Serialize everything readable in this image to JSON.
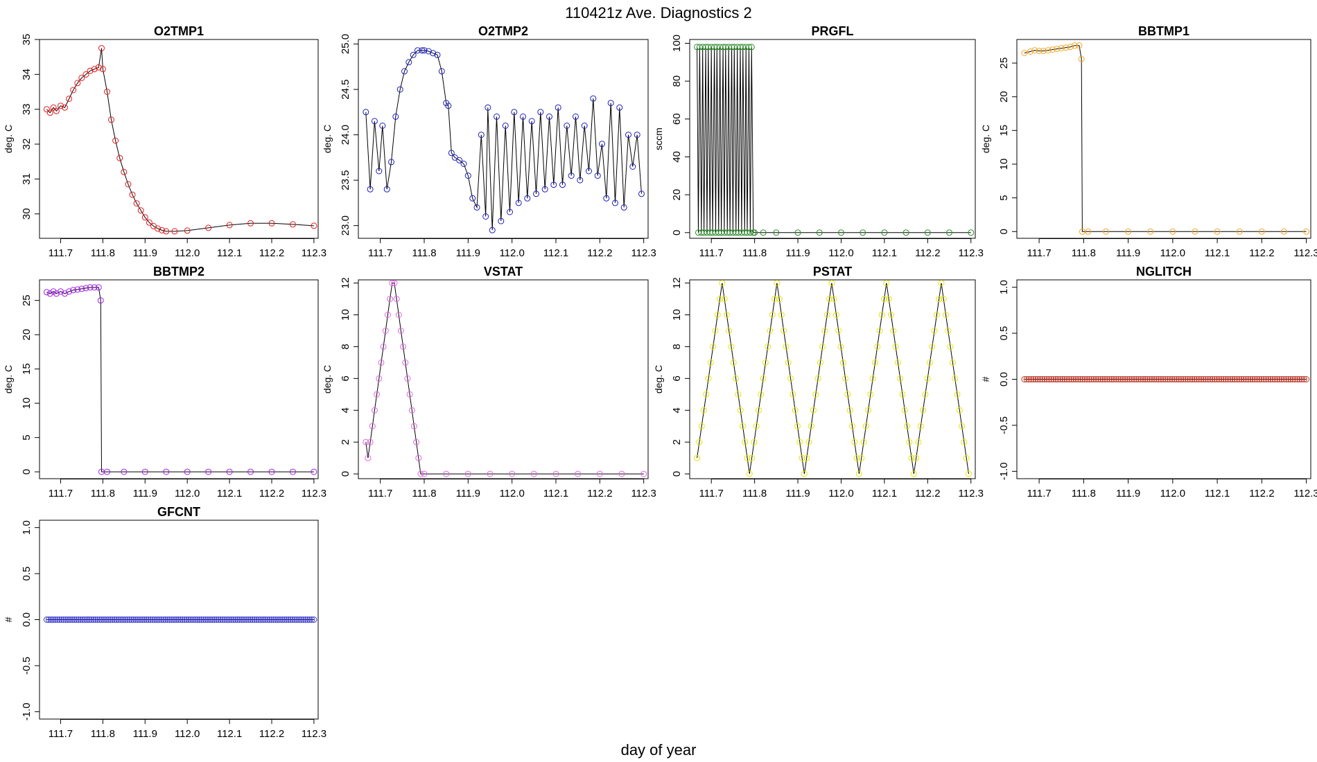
{
  "figure": {
    "title": "110421z   Ave. Diagnostics 2",
    "xlabel": "day of year"
  },
  "chart_data": [
    {
      "id": "O2TMP1",
      "type": "line",
      "title": "O2TMP1",
      "ylabel": "deg. C",
      "xlim": [
        111.65,
        112.31
      ],
      "ylim": [
        29.3,
        35.0
      ],
      "xticks": [
        "111.7",
        "111.8",
        "111.9",
        "112.0",
        "112.1",
        "112.2",
        "112.3"
      ],
      "yticks": [
        "30",
        "31",
        "32",
        "33",
        "34",
        "35"
      ],
      "marker_color": "#e41a1c",
      "series": [
        {
          "x": [
            111.667,
            111.675,
            111.683,
            111.69,
            111.7,
            111.71,
            111.72,
            111.73,
            111.74,
            111.75,
            111.76,
            111.77,
            111.78,
            111.79,
            111.797,
            111.8,
            111.81,
            111.82,
            111.83,
            111.84,
            111.85,
            111.86,
            111.87,
            111.88,
            111.89,
            111.9,
            111.91,
            111.92,
            111.93,
            111.94,
            111.95,
            111.97,
            112.0,
            112.05,
            112.1,
            112.15,
            112.2,
            112.25,
            112.3
          ],
          "y": [
            33.0,
            32.9,
            33.05,
            32.95,
            33.1,
            33.05,
            33.3,
            33.55,
            33.75,
            33.9,
            34.0,
            34.1,
            34.15,
            34.2,
            34.75,
            34.15,
            33.5,
            32.7,
            32.1,
            31.6,
            31.2,
            30.85,
            30.55,
            30.3,
            30.1,
            29.9,
            29.75,
            29.65,
            29.58,
            29.53,
            29.5,
            29.5,
            29.52,
            29.6,
            29.68,
            29.73,
            29.73,
            29.7,
            29.66
          ]
        }
      ]
    },
    {
      "id": "O2TMP2",
      "type": "line",
      "title": "O2TMP2",
      "ylabel": "deg. C",
      "xlim": [
        111.65,
        112.31
      ],
      "ylim": [
        22.86,
        25.05
      ],
      "xticks": [
        "111.7",
        "111.8",
        "111.9",
        "112.0",
        "112.1",
        "112.2",
        "112.3"
      ],
      "yticks": [
        "23.0",
        "23.5",
        "24.0",
        "24.5",
        "25.0"
      ],
      "marker_color": "#1f1fbf",
      "series": [
        {
          "x": [
            111.667,
            111.677,
            111.687,
            111.697,
            111.705,
            111.715,
            111.725,
            111.735,
            111.745,
            111.755,
            111.765,
            111.775,
            111.785,
            111.795,
            111.8,
            111.81,
            111.82,
            111.83,
            111.84,
            111.85,
            111.855,
            111.862,
            111.87,
            111.88,
            111.89,
            111.9,
            111.91,
            111.92,
            111.93,
            111.94,
            111.945,
            111.955,
            111.965,
            111.975,
            111.985,
            111.995,
            112.005,
            112.015,
            112.025,
            112.035,
            112.045,
            112.055,
            112.065,
            112.075,
            112.085,
            112.095,
            112.105,
            112.115,
            112.125,
            112.135,
            112.145,
            112.155,
            112.165,
            112.175,
            112.185,
            112.195,
            112.205,
            112.215,
            112.225,
            112.235,
            112.245,
            112.255,
            112.265,
            112.275,
            112.285,
            112.295
          ],
          "y": [
            24.25,
            23.4,
            24.15,
            23.6,
            24.1,
            23.4,
            23.7,
            24.2,
            24.5,
            24.7,
            24.8,
            24.88,
            24.93,
            24.93,
            24.93,
            24.92,
            24.9,
            24.88,
            24.7,
            24.35,
            24.32,
            23.8,
            23.75,
            23.72,
            23.68,
            23.55,
            23.3,
            23.2,
            24.0,
            23.1,
            24.3,
            22.95,
            24.2,
            23.05,
            24.1,
            23.15,
            24.25,
            23.25,
            24.2,
            23.3,
            24.15,
            23.35,
            24.25,
            23.4,
            24.2,
            23.45,
            24.3,
            23.45,
            24.1,
            23.55,
            24.2,
            23.5,
            24.1,
            23.6,
            24.4,
            23.55,
            23.9,
            23.3,
            24.35,
            23.25,
            24.3,
            23.2,
            24.0,
            23.65,
            24.0,
            23.35
          ]
        }
      ]
    },
    {
      "id": "PRGFL",
      "type": "line",
      "title": "PRGFL",
      "ylabel": "sccm",
      "xlim": [
        111.65,
        112.31
      ],
      "ylim": [
        -3,
        102
      ],
      "xticks": [
        "111.7",
        "111.8",
        "111.9",
        "112.0",
        "112.1",
        "112.2",
        "112.3"
      ],
      "yticks": [
        "0",
        "20",
        "40",
        "60",
        "80",
        "100"
      ],
      "marker_color": "#2e8b2e",
      "series": [
        {
          "x": [
            111.667,
            111.67,
            111.673,
            111.677,
            111.68,
            111.683,
            111.687,
            111.69,
            111.693,
            111.697,
            111.7,
            111.703,
            111.707,
            111.71,
            111.713,
            111.717,
            111.72,
            111.723,
            111.727,
            111.73,
            111.733,
            111.737,
            111.74,
            111.743,
            111.747,
            111.75,
            111.753,
            111.757,
            111.76,
            111.763,
            111.767,
            111.77,
            111.773,
            111.777,
            111.78,
            111.783,
            111.787,
            111.79,
            111.793,
            111.797,
            111.8,
            111.82,
            111.85,
            111.9,
            111.95,
            112.0,
            112.05,
            112.1,
            112.15,
            112.2,
            112.25,
            112.3
          ],
          "y": [
            98,
            0,
            98,
            0,
            98,
            0,
            98,
            0,
            98,
            0,
            98,
            0,
            98,
            0,
            98,
            0,
            98,
            0,
            98,
            0,
            98,
            0,
            98,
            0,
            98,
            0,
            98,
            0,
            98,
            0,
            98,
            0,
            98,
            0,
            98,
            0,
            98,
            0,
            98,
            0,
            0,
            0,
            0,
            0,
            0,
            0,
            0,
            0,
            0,
            0,
            0,
            0
          ]
        }
      ]
    },
    {
      "id": "BBTMP1",
      "type": "line",
      "title": "BBTMP1",
      "ylabel": "deg. C",
      "xlim": [
        111.65,
        112.31
      ],
      "ylim": [
        -1,
        28.5
      ],
      "xticks": [
        "111.7",
        "111.8",
        "111.9",
        "112.0",
        "112.1",
        "112.2",
        "112.3"
      ],
      "yticks": [
        "0",
        "5",
        "10",
        "15",
        "20",
        "25"
      ],
      "marker_color": "#f5a623",
      "series": [
        {
          "x": [
            111.667,
            111.68,
            111.69,
            111.7,
            111.71,
            111.72,
            111.73,
            111.74,
            111.75,
            111.76,
            111.77,
            111.78,
            111.79,
            111.795,
            111.797,
            111.81,
            111.85,
            111.9,
            111.95,
            112.0,
            112.05,
            112.1,
            112.15,
            112.2,
            112.25,
            112.3
          ],
          "y": [
            26.5,
            26.7,
            26.9,
            26.8,
            26.8,
            26.9,
            27.0,
            27.1,
            27.2,
            27.3,
            27.4,
            27.6,
            27.6,
            25.6,
            0,
            0,
            0,
            0,
            0,
            0,
            0,
            0,
            0,
            0,
            0,
            0
          ]
        }
      ]
    },
    {
      "id": "BBTMP2",
      "type": "line",
      "title": "BBTMP2",
      "ylabel": "deg. C",
      "xlim": [
        111.65,
        112.31
      ],
      "ylim": [
        -1,
        28
      ],
      "xticks": [
        "111.7",
        "111.8",
        "111.9",
        "112.0",
        "112.1",
        "112.2",
        "112.3"
      ],
      "yticks": [
        "0",
        "5",
        "10",
        "15",
        "20",
        "25"
      ],
      "marker_color": "#a020f0",
      "series": [
        {
          "x": [
            111.667,
            111.675,
            111.683,
            111.69,
            111.7,
            111.71,
            111.72,
            111.73,
            111.74,
            111.75,
            111.76,
            111.77,
            111.78,
            111.79,
            111.795,
            111.797,
            111.81,
            111.85,
            111.9,
            111.95,
            112.0,
            112.05,
            112.1,
            112.15,
            112.2,
            112.25,
            112.3
          ],
          "y": [
            26.2,
            26.0,
            26.3,
            26.0,
            26.3,
            26.0,
            26.3,
            26.5,
            26.6,
            26.7,
            26.8,
            26.9,
            26.9,
            26.9,
            25.0,
            0,
            0,
            0,
            0,
            0,
            0,
            0,
            0,
            0,
            0,
            0,
            0
          ]
        }
      ]
    },
    {
      "id": "VSTAT",
      "type": "line",
      "title": "VSTAT",
      "ylabel": "deg. C",
      "xlim": [
        111.65,
        112.31
      ],
      "ylim": [
        -0.3,
        12.2
      ],
      "xticks": [
        "111.7",
        "111.8",
        "111.9",
        "112.0",
        "112.1",
        "112.2",
        "112.3"
      ],
      "yticks": [
        "0",
        "2",
        "4",
        "6",
        "8",
        "10",
        "12"
      ],
      "marker_color": "#e066e0",
      "series": [
        {
          "x": [
            111.667,
            111.672,
            111.677,
            111.682,
            111.687,
            111.692,
            111.697,
            111.702,
            111.707,
            111.712,
            111.717,
            111.722,
            111.727,
            111.732,
            111.737,
            111.742,
            111.747,
            111.752,
            111.757,
            111.762,
            111.767,
            111.772,
            111.777,
            111.782,
            111.787,
            111.792,
            111.8,
            111.85,
            111.9,
            111.95,
            112.0,
            112.05,
            112.1,
            112.15,
            112.2,
            112.25,
            112.3
          ],
          "y": [
            2,
            1,
            2,
            3,
            4,
            5,
            6,
            7,
            8,
            9,
            10,
            11,
            12,
            12,
            11,
            10,
            9,
            8,
            7,
            6,
            5,
            4,
            3,
            2,
            1,
            0,
            0,
            0,
            0,
            0,
            0,
            0,
            0,
            0,
            0,
            0,
            0
          ]
        }
      ]
    },
    {
      "id": "PSTAT",
      "type": "line",
      "title": "PSTAT",
      "ylabel": "deg. C",
      "xlim": [
        111.65,
        112.31
      ],
      "ylim": [
        -0.3,
        12.2
      ],
      "xticks": [
        "111.7",
        "111.8",
        "111.9",
        "112.0",
        "112.1",
        "112.2",
        "112.3"
      ],
      "yticks": [
        "0",
        "2",
        "4",
        "6",
        "8",
        "10",
        "12"
      ],
      "marker_color": "#e6e600",
      "sawtooth": {
        "start": 111.667,
        "end": 112.3,
        "cycles": 5,
        "max": 12
      }
    },
    {
      "id": "NGLITCH",
      "type": "line",
      "title": "NGLITCH",
      "ylabel": "#",
      "xlim": [
        111.65,
        112.31
      ],
      "ylim": [
        -1.08,
        1.08
      ],
      "xticks": [
        "111.7",
        "111.8",
        "111.9",
        "112.0",
        "112.1",
        "112.2",
        "112.3"
      ],
      "yticks": [
        "-1.0",
        "-0.5",
        "0.0",
        "0.5",
        "1.0"
      ],
      "marker_color": "#c0392b",
      "constant": {
        "start": 111.667,
        "end": 112.3,
        "value": 0
      }
    },
    {
      "id": "GFCNT",
      "type": "line",
      "title": "GFCNT",
      "ylabel": "#",
      "xlim": [
        111.65,
        112.31
      ],
      "ylim": [
        -1.08,
        1.08
      ],
      "xticks": [
        "111.7",
        "111.8",
        "111.9",
        "112.0",
        "112.1",
        "112.2",
        "112.3"
      ],
      "yticks": [
        "-1.0",
        "-0.5",
        "0.0",
        "0.5",
        "1.0"
      ],
      "marker_color": "#3a3ad0",
      "constant": {
        "start": 111.667,
        "end": 112.3,
        "value": 0
      }
    }
  ]
}
